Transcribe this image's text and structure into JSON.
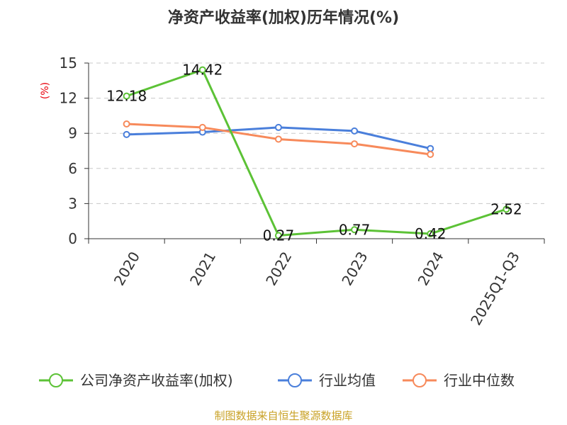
{
  "colors": {
    "company": "#5cc236",
    "industry_avg": "#4a7fdb",
    "industry_median": "#f78a5b",
    "grid": "#c8c8c8",
    "axis": "#333333"
  },
  "source": "制图数据来自恒生聚源数据库",
  "chart_data": {
    "type": "line",
    "title": "净资产收益率(加权)历年情况(%)",
    "xlabel": "",
    "ylabel": "(%)",
    "categories": [
      "2020",
      "2021",
      "2022",
      "2023",
      "2024",
      "2025Q1-Q3"
    ],
    "ylim": [
      0,
      15
    ],
    "yticks": [
      0,
      3,
      6,
      9,
      12,
      15
    ],
    "grid": true,
    "legend_position": "bottom",
    "series": [
      {
        "name": "公司净资产收益率(加权)",
        "color_key": "company",
        "values": [
          12.18,
          14.42,
          0.27,
          0.77,
          0.42,
          2.52
        ],
        "labels": [
          "12.18",
          "14.42",
          "0.27",
          "0.77",
          "0.42",
          "2.52"
        ]
      },
      {
        "name": "行业均值",
        "color_key": "industry_avg",
        "values": [
          8.9,
          9.1,
          9.5,
          9.2,
          7.7,
          null
        ],
        "labels": null
      },
      {
        "name": "行业中位数",
        "color_key": "industry_median",
        "values": [
          9.8,
          9.5,
          8.5,
          8.1,
          7.2,
          null
        ],
        "labels": null
      }
    ]
  }
}
